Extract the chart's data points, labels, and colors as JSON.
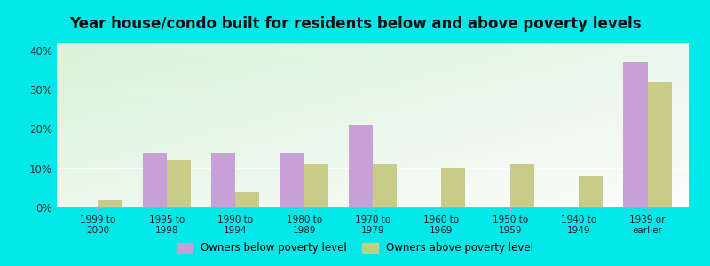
{
  "title": "Year house/condo built for residents below and above poverty levels",
  "categories": [
    "1999 to\n2000",
    "1995 to\n1998",
    "1990 to\n1994",
    "1980 to\n1989",
    "1970 to\n1979",
    "1960 to\n1969",
    "1950 to\n1959",
    "1940 to\n1949",
    "1939 or\nearlier"
  ],
  "below_poverty": [
    0.0,
    14.0,
    14.0,
    14.0,
    21.0,
    0.0,
    0.0,
    0.0,
    37.0
  ],
  "above_poverty": [
    2.0,
    12.0,
    4.0,
    11.0,
    11.0,
    10.0,
    11.0,
    8.0,
    32.0
  ],
  "color_below": "#c8a0d8",
  "color_above": "#c8cc88",
  "ylim": [
    0,
    42
  ],
  "yticks": [
    0,
    10,
    20,
    30,
    40
  ],
  "ytick_labels": [
    "0%",
    "10%",
    "20%",
    "30%",
    "40%"
  ],
  "background_outer": "#00e8e8",
  "legend_below": "Owners below poverty level",
  "legend_above": "Owners above poverty level",
  "title_fontsize": 12,
  "bar_width": 0.35
}
